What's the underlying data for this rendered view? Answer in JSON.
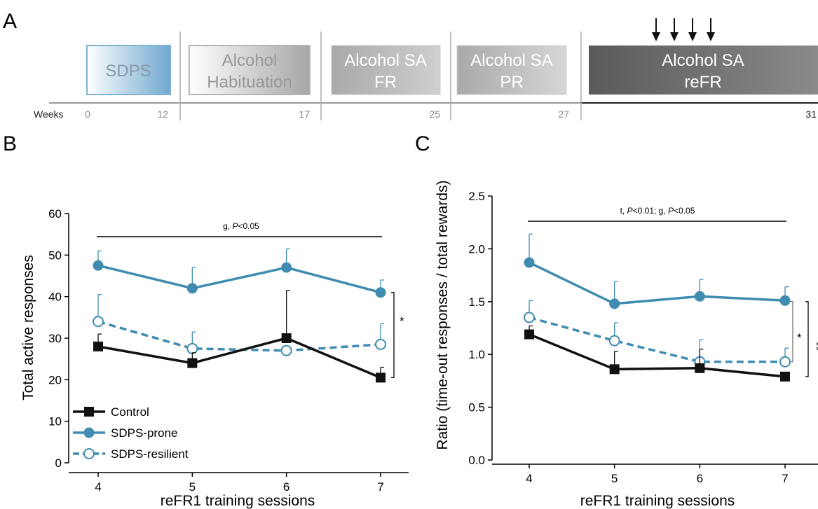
{
  "panel_letters": {
    "a": "A",
    "b": "B",
    "c": "C"
  },
  "timeline": {
    "weeks_label": "Weeks",
    "ticks": [
      "0",
      "12",
      "17",
      "25",
      "27",
      "31"
    ],
    "stages": [
      {
        "line1": "SDPS",
        "line2": ""
      },
      {
        "line1": "Alcohol",
        "line2": "Habituation"
      },
      {
        "line1": "Alcohol SA",
        "line2": "FR"
      },
      {
        "line1": "Alcohol SA",
        "line2": "PR"
      },
      {
        "line1": "Alcohol SA",
        "line2": "reFR"
      }
    ],
    "arrow_count": 4
  },
  "colors": {
    "control": "#111111",
    "prone": "#3f8cb0",
    "resilient": "#3f8cb0"
  },
  "chart_data": [
    {
      "type": "line",
      "panel": "B",
      "xlabel": "reFR1 training sessions",
      "ylabel": "Total active responses",
      "x": [
        4,
        5,
        6,
        7
      ],
      "ylim": [
        0,
        60
      ],
      "yticks": [
        "0",
        "10",
        "20",
        "30",
        "40",
        "50",
        "60"
      ],
      "xticks": [
        "4",
        "5",
        "6",
        "7"
      ],
      "annotation": {
        "prefix": "g, ",
        "p": "P",
        "suffix": "<0.05"
      },
      "sig_marker": "*",
      "series": [
        {
          "name": "Control",
          "values": [
            28,
            24,
            30,
            20.5
          ],
          "errors": [
            3,
            2.5,
            11.5,
            2.5
          ]
        },
        {
          "name": "SDPS-prone",
          "values": [
            47.5,
            42,
            47,
            41
          ],
          "errors": [
            3.5,
            5,
            4.5,
            3
          ]
        },
        {
          "name": "SDPS-resilient",
          "values": [
            34,
            27.5,
            27,
            28.5
          ],
          "errors": [
            6.5,
            4,
            0,
            5
          ]
        }
      ],
      "legend_position": "bottom-left"
    },
    {
      "type": "line",
      "panel": "C",
      "xlabel": "reFR1 training sessions",
      "ylabel": "Ratio (time-out responses / total rewards)",
      "x": [
        4,
        5,
        6,
        7
      ],
      "ylim": [
        0,
        2.5
      ],
      "yticks": [
        "0.0",
        "0.5",
        "1.0",
        "1.5",
        "2.0",
        "2.5"
      ],
      "xticks": [
        "4",
        "5",
        "6",
        "7"
      ],
      "annotation": {
        "prefix": "t, ",
        "p1": "P",
        "mid": "<0.01; g, ",
        "p2": "P",
        "suffix": "<0.05"
      },
      "sig_markers": [
        "*",
        "**"
      ],
      "series": [
        {
          "name": "Control",
          "values": [
            1.19,
            0.86,
            0.87,
            0.79
          ],
          "errors": [
            0.08,
            0.17,
            0.18,
            0.02
          ]
        },
        {
          "name": "SDPS-prone",
          "values": [
            1.87,
            1.48,
            1.55,
            1.51
          ],
          "errors": [
            0.27,
            0.21,
            0.16,
            0.13
          ]
        },
        {
          "name": "SDPS-resilient",
          "values": [
            1.35,
            1.13,
            0.93,
            0.93
          ],
          "errors": [
            0.16,
            0.17,
            0.21,
            0.13
          ]
        }
      ]
    }
  ]
}
